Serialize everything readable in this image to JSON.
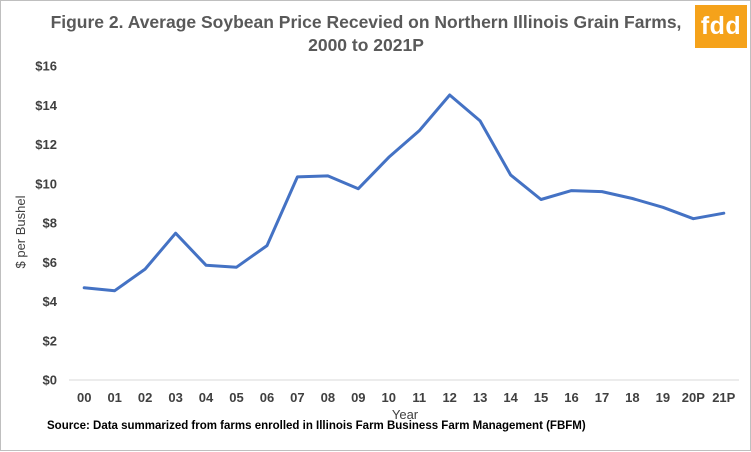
{
  "chart_data": {
    "type": "line",
    "title": "Figure 2. Average Soybean Price Recevied on Northern Illinois Grain Farms, 2000 to 2021P",
    "xlabel": "Year",
    "ylabel": "$ per Bushel",
    "categories": [
      "00",
      "01",
      "02",
      "03",
      "04",
      "05",
      "06",
      "07",
      "08",
      "09",
      "10",
      "11",
      "12",
      "13",
      "14",
      "15",
      "16",
      "17",
      "18",
      "19",
      "20P",
      "21P"
    ],
    "values": [
      4.7,
      4.55,
      5.65,
      7.48,
      5.85,
      5.75,
      6.85,
      10.35,
      10.4,
      9.75,
      11.35,
      12.7,
      14.52,
      13.2,
      10.45,
      9.2,
      9.65,
      9.6,
      9.25,
      8.8,
      8.22,
      8.5
    ],
    "yticks": [
      "$0",
      "$2",
      "$4",
      "$6",
      "$8",
      "$10",
      "$12",
      "$14",
      "$16"
    ],
    "ylim": [
      0,
      16
    ],
    "line_color": "#4472c4",
    "grid": false,
    "legend": "none"
  },
  "title_lines": [
    "Figure 2. Average Soybean Price Recevied on Northern Illinois Grain Farms,",
    "2000 to 2021P"
  ],
  "logo_text": "fdd",
  "logo_color": "#f5a21a",
  "source": "Source:  Data summarized from farms enrolled in Illinois Farm Business Farm Management (FBFM)"
}
